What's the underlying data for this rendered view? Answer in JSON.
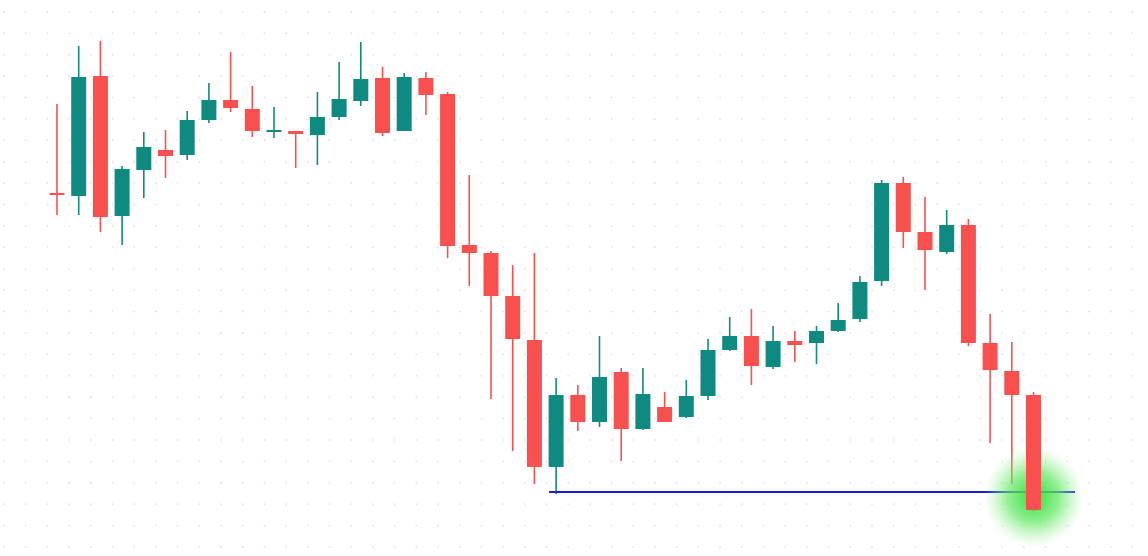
{
  "chart_data": {
    "type": "candlestick",
    "open": [
      363,
      360,
      480,
      340,
      386,
      406,
      401,
      436,
      456,
      447,
      425,
      425,
      421,
      439,
      455,
      478,
      425,
      478,
      462,
      311,
      303,
      260,
      216,
      89,
      161,
      134,
      184,
      127,
      149,
      139,
      160,
      206,
      220,
      189,
      215,
      213,
      225,
      237,
      275,
      373,
      324,
      304,
      331,
      213,
      185,
      161
    ],
    "high": [
      452,
      510,
      515,
      390,
      424,
      426,
      445,
      473,
      504,
      470,
      449,
      425,
      464,
      494,
      514,
      489,
      483,
      484,
      464,
      381,
      305,
      291,
      303,
      178,
      171,
      220,
      188,
      188,
      164,
      176,
      217,
      239,
      247,
      230,
      225,
      230,
      253,
      280,
      376,
      379,
      359,
      346,
      337,
      242,
      214,
      164
    ],
    "low": [
      341,
      341,
      324,
      311,
      358,
      378,
      396,
      433,
      444,
      419,
      418,
      388,
      391,
      436,
      450,
      420,
      425,
      441,
      298,
      270,
      157,
      105,
      72,
      62,
      125,
      129,
      95,
      126,
      134,
      138,
      156,
      205,
      171,
      187,
      194,
      192,
      224,
      234,
      270,
      308,
      266,
      302,
      210,
      113,
      72,
      45
    ],
    "close": [
      361,
      479,
      339,
      387,
      409,
      400,
      436,
      456,
      448,
      425,
      426,
      422,
      439,
      457,
      477,
      423,
      479,
      461,
      310,
      303,
      260,
      217,
      89,
      161,
      134,
      179,
      127,
      162,
      134,
      160,
      206,
      220,
      190,
      215,
      211,
      225,
      236,
      274,
      373,
      324,
      306,
      331,
      213,
      186,
      161,
      46
    ],
    "level": 64,
    "level_color": "#1a1adb",
    "up_color": "#0f8a80",
    "down_color": "#f7504f",
    "ylim": [
      0,
      556
    ],
    "grid": true
  }
}
